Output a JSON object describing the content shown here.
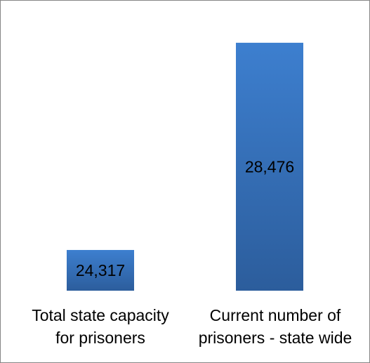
{
  "chart_data": {
    "type": "bar",
    "categories": [
      "Total state capacity for prisoners",
      "Current number of prisoners - state wide"
    ],
    "category_lines": [
      [
        "Total state capacity",
        "for prisoners"
      ],
      [
        "Current number of",
        "prisoners - state wide"
      ]
    ],
    "values": [
      24317,
      28476
    ],
    "data_labels": [
      "24,317",
      "28,476"
    ],
    "title": "",
    "xlabel": "",
    "ylabel": "",
    "ylim": [
      23500,
      28700
    ],
    "grid": false,
    "legend": "none",
    "bar_color_top": "#3d7fcf",
    "bar_color_bottom": "#2c5d9c"
  }
}
